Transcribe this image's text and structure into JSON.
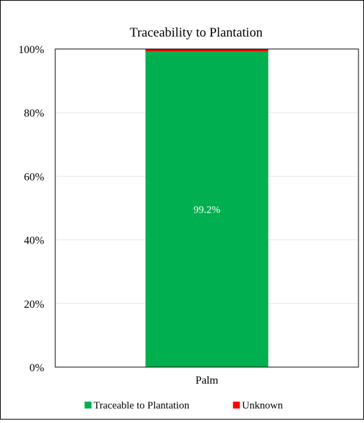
{
  "chart_data": {
    "type": "bar",
    "stacked": true,
    "percent": true,
    "title": "Traceability to Plantation",
    "categories": [
      "Palm"
    ],
    "series": [
      {
        "name": "Traceable to Plantation",
        "values": [
          99.2
        ],
        "color": "#00b050",
        "label": "99.2%"
      },
      {
        "name": "Unknown",
        "values": [
          0.8
        ],
        "color": "#ff0000"
      }
    ],
    "y_ticks": [
      "0%",
      "20%",
      "40%",
      "60%",
      "80%",
      "100%"
    ],
    "ylim": [
      0,
      100
    ],
    "xlabel": "",
    "ylabel": "",
    "grid": true,
    "legend": "bottom"
  }
}
